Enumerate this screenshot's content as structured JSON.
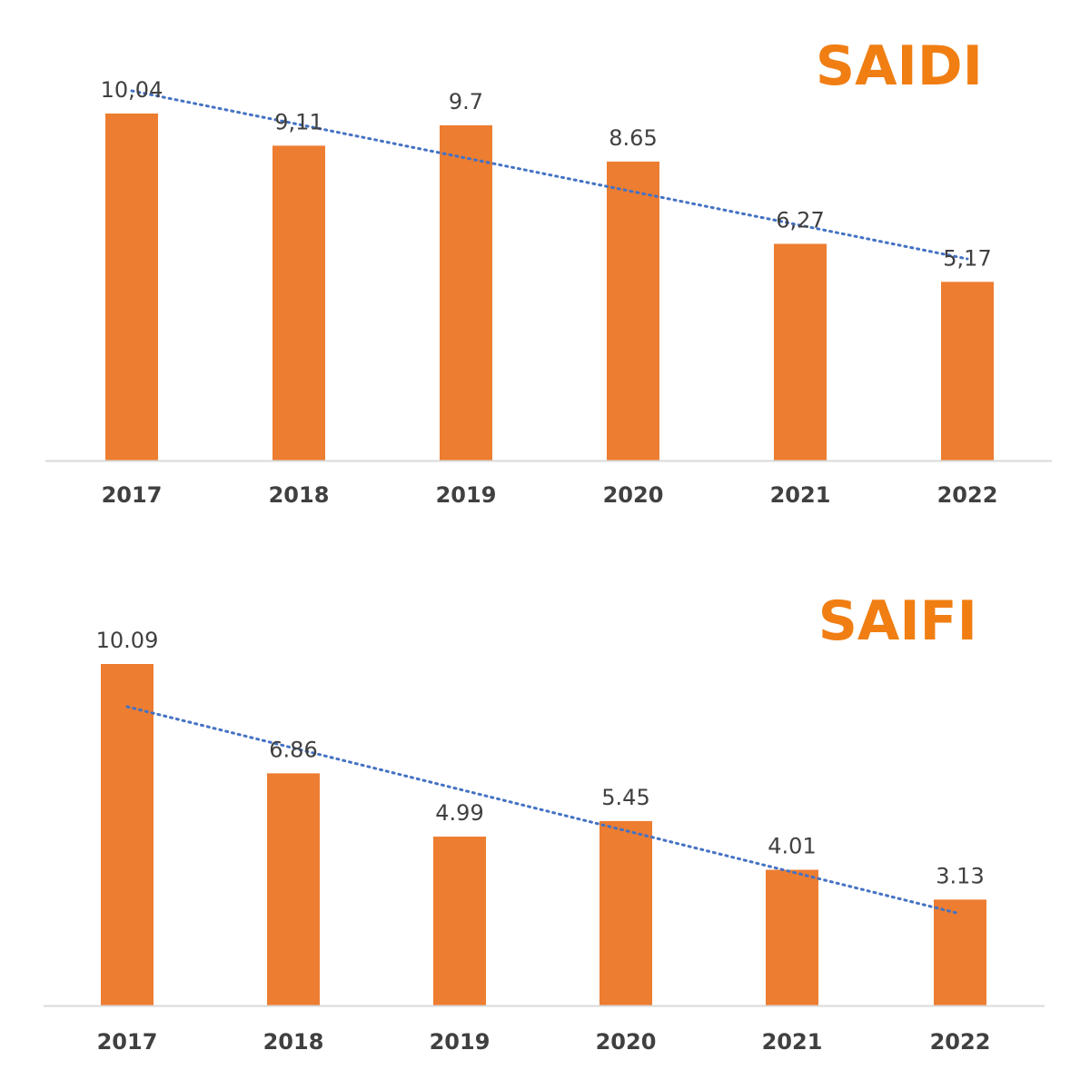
{
  "colors": {
    "bar": "#ED7D31",
    "title": "#F07E13",
    "trendline": "#4472C4",
    "axis": "#D9D9D9",
    "data_label": "#404040",
    "tick_label": "#404040"
  },
  "chart_data": [
    {
      "type": "bar",
      "title": "SAIDI",
      "categories": [
        "2017",
        "2018",
        "2019",
        "2020",
        "2021",
        "2022"
      ],
      "values": [
        10.04,
        9.11,
        9.7,
        8.65,
        6.27,
        5.17
      ],
      "data_labels": [
        "10,04",
        "9,11",
        "9.7",
        "8.65",
        "6,27",
        "5,17"
      ],
      "trendline": "linear, dotted",
      "xlabel": "",
      "ylabel": "",
      "ylim": [
        0,
        10.04
      ],
      "grid": false,
      "legend": "none"
    },
    {
      "type": "bar",
      "title": "SAIFI",
      "categories": [
        "2017",
        "2018",
        "2019",
        "2020",
        "2021",
        "2022"
      ],
      "values": [
        10.09,
        6.86,
        4.99,
        5.45,
        4.01,
        3.13
      ],
      "data_labels": [
        "10.09",
        "6.86",
        "4.99",
        "5.45",
        "4.01",
        "3.13"
      ],
      "trendline": "linear, dotted",
      "xlabel": "",
      "ylabel": "",
      "ylim": [
        0,
        10.09
      ],
      "grid": false,
      "legend": "none"
    }
  ]
}
